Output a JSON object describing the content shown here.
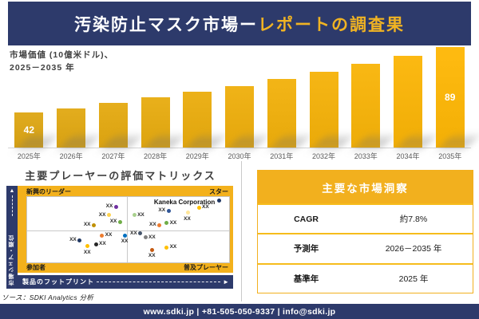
{
  "header": {
    "title_white": "汚染防止マスク市場ー",
    "title_gold": "レポートの調査果"
  },
  "chart_section": {
    "label_line1": "市場価値 (10億米ドル)、",
    "label_line2": "2025－2035 年"
  },
  "chart_data": [
    {
      "type": "bar",
      "title": "市場価値 (10億米ドル)、2025－2035 年",
      "categories": [
        "2025年",
        "2026年",
        "2027年",
        "2028年",
        "2029年",
        "2030年",
        "2031年",
        "2032年",
        "2033年",
        "2034年",
        "2035年"
      ],
      "values": [
        42,
        45,
        49,
        53,
        57,
        61,
        66,
        71,
        77,
        83,
        89
      ],
      "data_labels_shown": {
        "2025年": "42",
        "2035年": "89"
      },
      "ylim": [
        30,
        95
      ],
      "grid": false,
      "bar_color_start": "#D49F13",
      "bar_color_end": "#F3AF05"
    },
    {
      "type": "scatter",
      "title": "主要プレーヤーの評価マトリックス",
      "xlabel": "製品のフットプリント",
      "ylabel": "市場シェア・順位",
      "quadrant_labels": {
        "top_left": "新興のリーダー",
        "top_right": "スター",
        "bottom_left": "参加者",
        "bottom_right": "普及プレーヤー"
      },
      "annotation": "Kaneka Corporation",
      "note": "x,y are percent of plot area, y measured from top",
      "points": [
        {
          "x": 44,
          "y": 15,
          "color": "#7030A0",
          "label": "XX",
          "label_pos": "left"
        },
        {
          "x": 40.5,
          "y": 28,
          "color": "#FFD34D",
          "label": "XX",
          "label_pos": "left"
        },
        {
          "x": 33,
          "y": 43,
          "color": "#BF8F00",
          "label": "XX",
          "label_pos": "left"
        },
        {
          "x": 46,
          "y": 38,
          "color": "#70AD47",
          "label": "XX",
          "label_pos": "left"
        },
        {
          "x": 53,
          "y": 28,
          "color": "#A9D18E",
          "label": "XX",
          "label_pos": "right"
        },
        {
          "x": 70,
          "y": 21,
          "color": "#2F5597",
          "label": "XX",
          "label_pos": "left"
        },
        {
          "x": 79.5,
          "y": 24,
          "color": "#FFE699",
          "label": "XX",
          "label_pos": "below"
        },
        {
          "x": 85,
          "y": 16,
          "color": "#FFC000",
          "label": "XX",
          "label_pos": "right"
        },
        {
          "x": 95,
          "y": 5,
          "color": "#203864",
          "label": "",
          "label_pos": "none"
        },
        {
          "x": 65.5,
          "y": 43,
          "color": "#ED7D31",
          "label": "XX",
          "label_pos": "left"
        },
        {
          "x": 69,
          "y": 40,
          "color": "#70AD47",
          "label": "XX",
          "label_pos": "right"
        },
        {
          "x": 37,
          "y": 59,
          "color": "#ED7D31",
          "label": "XX",
          "label_pos": "right"
        },
        {
          "x": 48.5,
          "y": 59,
          "color": "#0070C0",
          "label": "XX",
          "label_pos": "below"
        },
        {
          "x": 26,
          "y": 66,
          "color": "#203864",
          "label": "XX",
          "label_pos": "left"
        },
        {
          "x": 34,
          "y": 72,
          "color": "#262626",
          "label": "XX",
          "label_pos": "right"
        },
        {
          "x": 30,
          "y": 75,
          "color": "#FFC000",
          "label": "XX",
          "label_pos": "below"
        },
        {
          "x": 56,
          "y": 56,
          "color": "#44546A",
          "label": "XX",
          "label_pos": "left"
        },
        {
          "x": 58.5,
          "y": 62,
          "color": "#808080",
          "label": "XX",
          "label_pos": "right"
        },
        {
          "x": 62,
          "y": 81,
          "color": "#C55A11",
          "label": "XX",
          "label_pos": "below"
        },
        {
          "x": 69,
          "y": 77,
          "color": "#FFC000",
          "label": "XX",
          "label_pos": "right"
        }
      ]
    }
  ],
  "matrix": {
    "title": "主要プレーヤーの評価マトリックス",
    "y_axis_label": "市場シェア・順位",
    "x_axis_label": "製品のフットプリント",
    "quadrant_top_left": "新興のリーダー",
    "quadrant_top_right": "スター",
    "quadrant_bottom_left": "参加者",
    "quadrant_bottom_right": "普及プレーヤー",
    "highlight_company": "Kaneka Corporation"
  },
  "insights": {
    "title": "主要な市場洞察",
    "rows": [
      {
        "label": "CAGR",
        "value": "約7.8%"
      },
      {
        "label": "予測年",
        "value": "2026－2035 年"
      },
      {
        "label": "基準年",
        "value": "2025 年"
      }
    ]
  },
  "source": "ソース：SDKI Analytics 分析",
  "footer": "www.sdki.jp | +81-505-050-9337 | info@sdki.jp",
  "colors": {
    "navy": "#2D3A6B",
    "gold": "#F2B01E",
    "header_gold_text": "#F0B323"
  }
}
